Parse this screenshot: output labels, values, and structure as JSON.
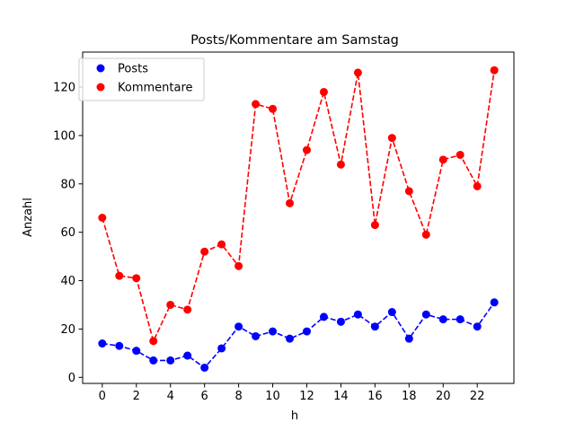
{
  "chart_data": {
    "type": "line",
    "title": "Posts/Kommentare am Samstag",
    "xlabel": "h",
    "ylabel": "Anzahl",
    "xlim": [
      -1.15,
      24.15
    ],
    "ylim": [
      -2.5,
      134.5
    ],
    "x_ticks": [
      0,
      2,
      4,
      6,
      8,
      10,
      12,
      14,
      16,
      18,
      20,
      22
    ],
    "y_ticks": [
      0,
      20,
      40,
      60,
      80,
      100,
      120
    ],
    "x": [
      0,
      1,
      2,
      3,
      4,
      5,
      6,
      7,
      8,
      9,
      10,
      11,
      12,
      13,
      14,
      15,
      16,
      17,
      18,
      19,
      20,
      21,
      22,
      23
    ],
    "grid": false,
    "legend_position": "top-left",
    "series": [
      {
        "name": "Posts",
        "color": "#0000ff",
        "marker": "circle",
        "linestyle": "dashed",
        "values": [
          14,
          13,
          11,
          7,
          7,
          9,
          4,
          12,
          21,
          17,
          19,
          16,
          19,
          25,
          23,
          26,
          21,
          27,
          16,
          26,
          24,
          24,
          21,
          31
        ]
      },
      {
        "name": "Kommentare",
        "color": "#ff0000",
        "marker": "circle",
        "linestyle": "dashed",
        "values": [
          66,
          42,
          41,
          15,
          30,
          28,
          52,
          55,
          46,
          113,
          111,
          72,
          94,
          118,
          88,
          126,
          63,
          99,
          77,
          59,
          90,
          92,
          79,
          127
        ]
      }
    ]
  }
}
